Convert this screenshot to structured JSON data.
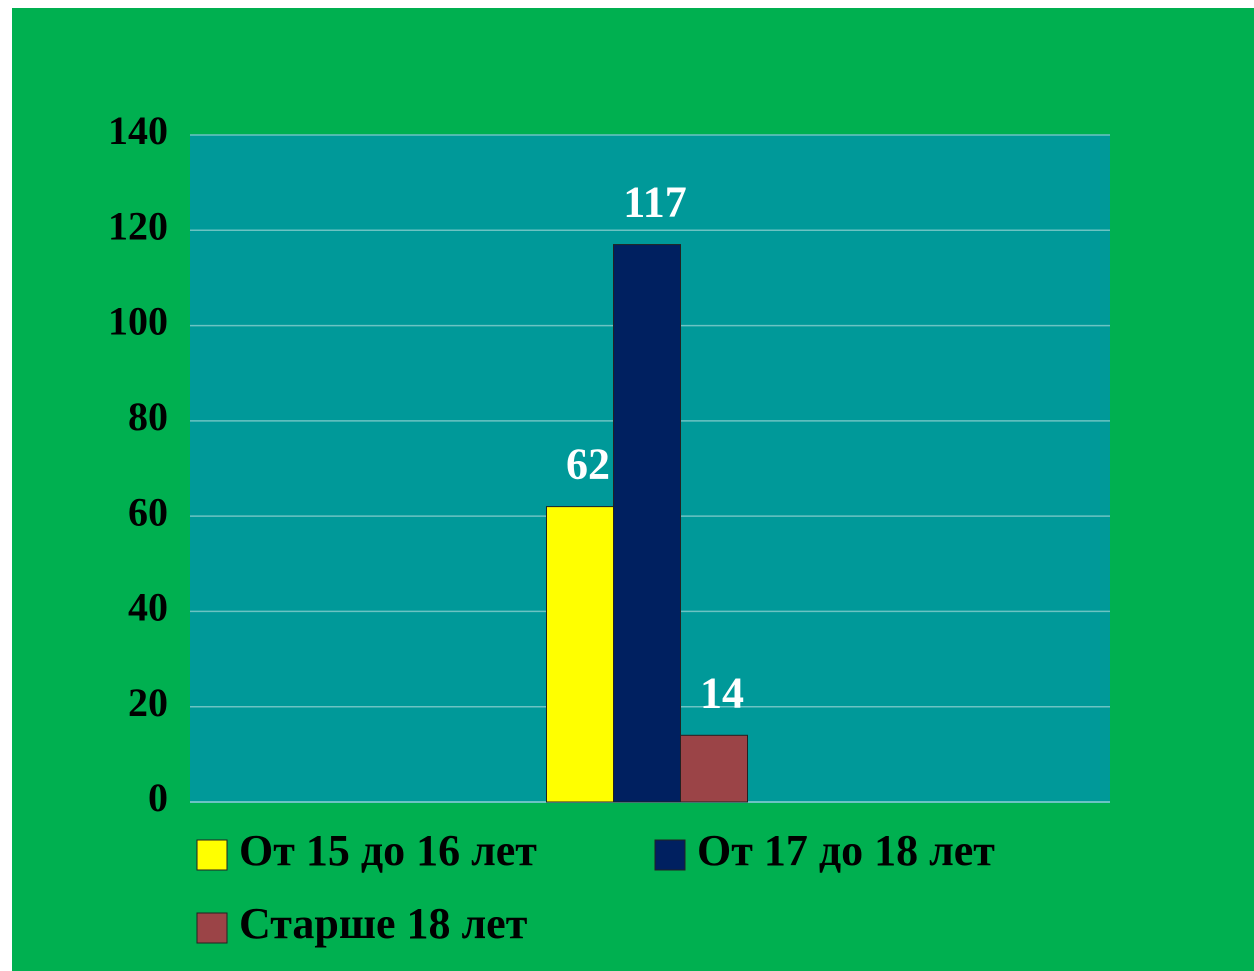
{
  "chart_data": {
    "type": "bar",
    "categories": [
      null
    ],
    "series": [
      {
        "name": "От 15 до 16 лет",
        "color": "#ffff00",
        "values": [
          62
        ]
      },
      {
        "name": "От 17 до 18 лет",
        "color": "#002060",
        "values": [
          117
        ]
      },
      {
        "name": "Старше 18 лет",
        "color": "#9b4447",
        "values": [
          14
        ]
      }
    ],
    "ylim": [
      0,
      140
    ],
    "yticks": [
      0,
      20,
      40,
      60,
      80,
      100,
      120,
      140
    ],
    "grid": true,
    "legend": "bottom"
  }
}
